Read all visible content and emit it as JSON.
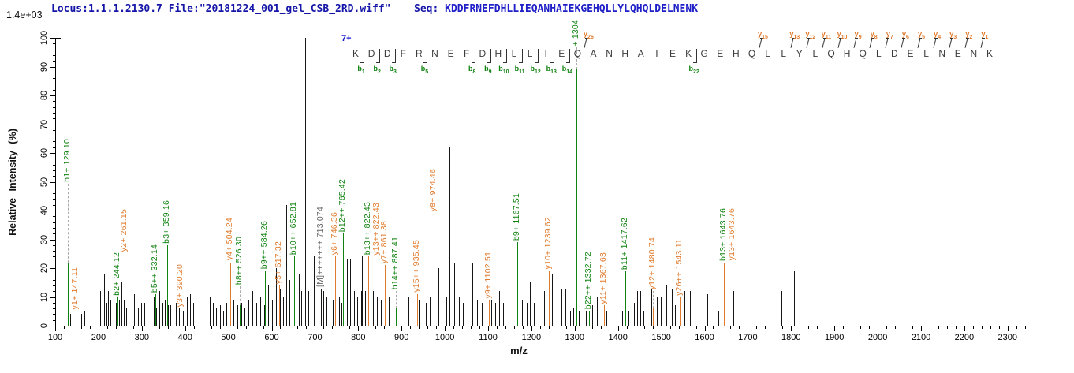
{
  "header": {
    "scale": "1.4e+03",
    "locus": "Locus:1.1.1.2130.7 File:\"20181224_001_gel_CSB_2RD.wiff\"",
    "seq_label": "Seq: ",
    "sequence": "KDDFRNEFDHLLIEQANHAIEKGEHQLLYLQHQLDELNENK"
  },
  "chart_data": {
    "type": "bar",
    "subtype": "ms2-mass-spectrum",
    "title": "",
    "xlabel": "m/z",
    "ylabel": "Relative Intensity (%)",
    "xlim": [
      100,
      2360
    ],
    "ylim": [
      0,
      100
    ],
    "x_tick_major": 100,
    "x_tick_minor": 20,
    "y_tick_major": 10,
    "y_tick_minor": 2,
    "grid": false,
    "intensity_scale_max": "1.4e+03",
    "precursor_charge": "7+",
    "peptide": {
      "sequence": "KDDFRNEFDHLLIEQANHAIEKGEHQLLYLQHQLDELNENK",
      "b_ions": [
        1,
        2,
        3,
        5,
        8,
        9,
        10,
        11,
        12,
        13,
        14,
        22
      ],
      "y_ions": [
        26,
        15,
        13,
        12,
        11,
        10,
        9,
        8,
        7,
        6,
        5,
        4,
        3,
        2,
        1
      ]
    },
    "annotated_peaks": [
      {
        "label": "b1+ 129.10",
        "mz": 129.1,
        "intensity": 22,
        "series": "b",
        "leader": 100
      },
      {
        "label": "y1+ 147.11",
        "mz": 147.11,
        "intensity": 5,
        "series": "y"
      },
      {
        "label": "b2+ 244.12",
        "mz": 244.12,
        "intensity": 10,
        "series": "b"
      },
      {
        "label": "y2+ 261.15",
        "mz": 261.15,
        "intensity": 25,
        "series": "y"
      },
      {
        "label": "b5++ 332.14",
        "mz": 332.14,
        "intensity": 11,
        "series": "b"
      },
      {
        "label": "b3+ 359.16",
        "mz": 359.16,
        "intensity": 28,
        "series": "b"
      },
      {
        "label": "y3+ 390.20",
        "mz": 390.2,
        "intensity": 6,
        "series": "y"
      },
      {
        "label": "y4+ 504.24",
        "mz": 504.24,
        "intensity": 22,
        "series": "y"
      },
      {
        "label": "b8++ 526.30",
        "mz": 526.3,
        "intensity": 7,
        "series": "b",
        "leader": 24
      },
      {
        "label": "b9++ 584.26",
        "mz": 584.26,
        "intensity": 19,
        "series": "b"
      },
      {
        "label": "y5+ 617.32",
        "mz": 617.32,
        "intensity": 14,
        "series": "y"
      },
      {
        "label": "b10++ 652.81",
        "mz": 652.81,
        "intensity": 24,
        "series": "b"
      },
      {
        "label": "[M]+++++++ 713.074",
        "mz": 713.074,
        "intensity": 13,
        "series": "precursor"
      },
      {
        "label": "y6+ 746.36",
        "mz": 746.36,
        "intensity": 24,
        "series": "y"
      },
      {
        "label": "b12++ 765.42",
        "mz": 765.42,
        "intensity": 32,
        "series": "b"
      },
      {
        "label": "b13++ 822.43",
        "mz": 822.43,
        "intensity": 24,
        "series": "b"
      },
      {
        "label": "y13++ 822.43",
        "mz": 822.43,
        "intensity": 24,
        "series": "y",
        "label_dx": 11
      },
      {
        "label": "y7+ 861.38",
        "mz": 861.38,
        "intensity": 21,
        "series": "y"
      },
      {
        "label": "b14++ 887.41",
        "mz": 887.41,
        "intensity": 6,
        "series": "b",
        "leader": 22
      },
      {
        "label": "y15++ 935.45",
        "mz": 935.45,
        "intensity": 11,
        "series": "y"
      },
      {
        "label": "y8+ 974.46",
        "mz": 974.46,
        "intensity": 39,
        "series": "y"
      },
      {
        "label": "y9+ 1102.51",
        "mz": 1102.51,
        "intensity": 9,
        "series": "y"
      },
      {
        "label": "b9+ 1167.51",
        "mz": 1167.51,
        "intensity": 29,
        "series": "b"
      },
      {
        "label": "y10+ 1239.62",
        "mz": 1239.62,
        "intensity": 19,
        "series": "y"
      },
      {
        "label": "+ 1304",
        "mz": 1304.6,
        "intensity": 89,
        "series": "b",
        "leader": 28
      },
      {
        "label": "b22++ 1332.72",
        "mz": 1332.72,
        "intensity": 5,
        "series": "b"
      },
      {
        "label": "y11+ 1367.63",
        "mz": 1367.63,
        "intensity": 7,
        "series": "y"
      },
      {
        "label": "b11+ 1417.62",
        "mz": 1417.62,
        "intensity": 19,
        "series": "b"
      },
      {
        "label": "y12+ 1480.74",
        "mz": 1480.74,
        "intensity": 6,
        "series": "y",
        "leader": 22
      },
      {
        "label": "y26++ 1543.11",
        "mz": 1543.11,
        "intensity": 10,
        "series": "y"
      },
      {
        "label": "b13+ 1643.76",
        "mz": 1643.76,
        "intensity": 22,
        "series": "b"
      },
      {
        "label": "y13+ 1643.76",
        "mz": 1643.76,
        "intensity": 22,
        "series": "y",
        "label_dx": 11
      }
    ],
    "unlabeled_peaks": [
      [
        114,
        51
      ],
      [
        121,
        9
      ],
      [
        135,
        4
      ],
      [
        160,
        4
      ],
      [
        168,
        5
      ],
      [
        191,
        12
      ],
      [
        204,
        12
      ],
      [
        209,
        6
      ],
      [
        213,
        18
      ],
      [
        219,
        8
      ],
      [
        222,
        12
      ],
      [
        228,
        9
      ],
      [
        234,
        7
      ],
      [
        240,
        8
      ],
      [
        247,
        9
      ],
      [
        253,
        15
      ],
      [
        258,
        9
      ],
      [
        264,
        6
      ],
      [
        270,
        12
      ],
      [
        277,
        8
      ],
      [
        283,
        11
      ],
      [
        291,
        6
      ],
      [
        298,
        8
      ],
      [
        305,
        8
      ],
      [
        312,
        7
      ],
      [
        320,
        6
      ],
      [
        327,
        10
      ],
      [
        334,
        6
      ],
      [
        340,
        12
      ],
      [
        347,
        8
      ],
      [
        354,
        9
      ],
      [
        360,
        7
      ],
      [
        366,
        7
      ],
      [
        372,
        6
      ],
      [
        379,
        8
      ],
      [
        386,
        6
      ],
      [
        395,
        5
      ],
      [
        404,
        10
      ],
      [
        411,
        11
      ],
      [
        418,
        8
      ],
      [
        425,
        7
      ],
      [
        433,
        6
      ],
      [
        441,
        9
      ],
      [
        450,
        7
      ],
      [
        457,
        10
      ],
      [
        464,
        8
      ],
      [
        472,
        6
      ],
      [
        480,
        7
      ],
      [
        488,
        5
      ],
      [
        496,
        8
      ],
      [
        512,
        9
      ],
      [
        520,
        7
      ],
      [
        530,
        8
      ],
      [
        538,
        6
      ],
      [
        547,
        9
      ],
      [
        556,
        12
      ],
      [
        565,
        8
      ],
      [
        574,
        10
      ],
      [
        583,
        7
      ],
      [
        592,
        14
      ],
      [
        601,
        9
      ],
      [
        610,
        20
      ],
      [
        620,
        13
      ],
      [
        627,
        10
      ],
      [
        633,
        42
      ],
      [
        641,
        16
      ],
      [
        648,
        12
      ],
      [
        655,
        9
      ],
      [
        662,
        18
      ],
      [
        669,
        12
      ],
      [
        677,
        100
      ],
      [
        684,
        12
      ],
      [
        690,
        24
      ],
      [
        697,
        24
      ],
      [
        708,
        15
      ],
      [
        719,
        12
      ],
      [
        726,
        10
      ],
      [
        734,
        12
      ],
      [
        741,
        9
      ],
      [
        755,
        10
      ],
      [
        762,
        8
      ],
      [
        774,
        23
      ],
      [
        781,
        23
      ],
      [
        790,
        12
      ],
      [
        798,
        10
      ],
      [
        806,
        12
      ],
      [
        809,
        24
      ],
      [
        815,
        12
      ],
      [
        834,
        12
      ],
      [
        843,
        10
      ],
      [
        852,
        9
      ],
      [
        870,
        10
      ],
      [
        879,
        12
      ],
      [
        889,
        37
      ],
      [
        898,
        87
      ],
      [
        907,
        11
      ],
      [
        916,
        10
      ],
      [
        924,
        8
      ],
      [
        940,
        9
      ],
      [
        948,
        12
      ],
      [
        957,
        8
      ],
      [
        966,
        10
      ],
      [
        985,
        20
      ],
      [
        993,
        12
      ],
      [
        1003,
        10
      ],
      [
        1011,
        62
      ],
      [
        1022,
        22
      ],
      [
        1033,
        10
      ],
      [
        1042,
        8
      ],
      [
        1053,
        12
      ],
      [
        1064,
        22
      ],
      [
        1075,
        9
      ],
      [
        1085,
        8
      ],
      [
        1096,
        10
      ],
      [
        1108,
        9
      ],
      [
        1117,
        8
      ],
      [
        1125,
        12
      ],
      [
        1135,
        8
      ],
      [
        1147,
        12
      ],
      [
        1157,
        19
      ],
      [
        1178,
        9
      ],
      [
        1190,
        8
      ],
      [
        1196,
        15
      ],
      [
        1206,
        8
      ],
      [
        1217,
        34
      ],
      [
        1230,
        12
      ],
      [
        1247,
        18
      ],
      [
        1260,
        17
      ],
      [
        1270,
        13
      ],
      [
        1278,
        13
      ],
      [
        1290,
        5
      ],
      [
        1297,
        6
      ],
      [
        1310,
        5
      ],
      [
        1320,
        4
      ],
      [
        1326,
        5
      ],
      [
        1340,
        7
      ],
      [
        1352,
        10
      ],
      [
        1374,
        5
      ],
      [
        1388,
        17
      ],
      [
        1397,
        21
      ],
      [
        1410,
        5
      ],
      [
        1424,
        5
      ],
      [
        1437,
        8
      ],
      [
        1444,
        12
      ],
      [
        1451,
        12
      ],
      [
        1458,
        5
      ],
      [
        1466,
        9
      ],
      [
        1477,
        13
      ],
      [
        1490,
        10
      ],
      [
        1499,
        10
      ],
      [
        1512,
        14
      ],
      [
        1524,
        13
      ],
      [
        1531,
        7
      ],
      [
        1553,
        12
      ],
      [
        1566,
        12
      ],
      [
        1578,
        5
      ],
      [
        1606,
        11
      ],
      [
        1621,
        11
      ],
      [
        1632,
        5
      ],
      [
        1666,
        12
      ],
      [
        1778,
        12
      ],
      [
        1807,
        19
      ],
      [
        1819,
        8
      ],
      [
        2309,
        9
      ]
    ],
    "legend": null
  },
  "colors": {
    "b_ion": "#108210",
    "y_ion": "#e07b2e",
    "precursor_label": "#666666",
    "peak": "#161616",
    "axis": "#000000",
    "residue": "#3c3c3c",
    "sequence_header": "#1515a8",
    "charge": "#1a1acc",
    "leader_dash": "#aaaaaa"
  }
}
